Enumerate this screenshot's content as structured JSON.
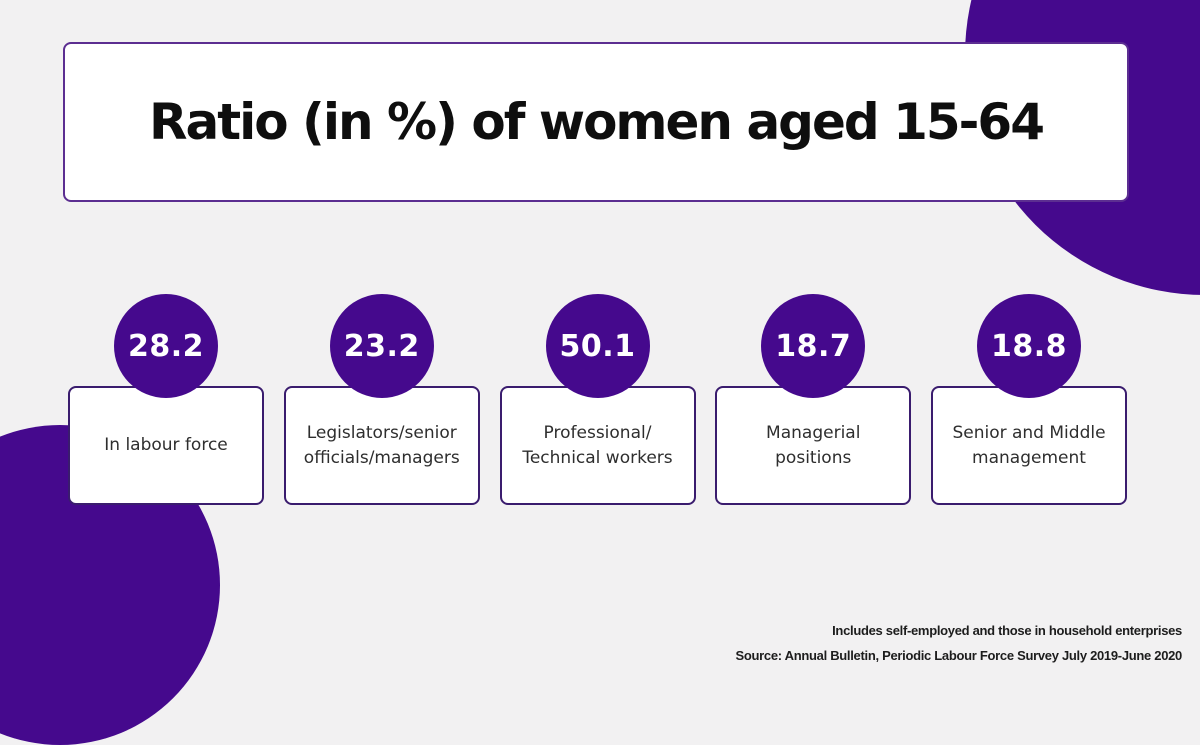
{
  "title": "Ratio (in %) of women aged 15-64",
  "stats": [
    {
      "value": "28.2",
      "lines": [
        "In labour force"
      ]
    },
    {
      "value": "23.2",
      "lines": [
        "Legislators/senior",
        "officials/managers"
      ]
    },
    {
      "value": "50.1",
      "lines": [
        "Professional/",
        "Technical workers"
      ]
    },
    {
      "value": "18.7",
      "lines": [
        "Managerial",
        "positions"
      ]
    },
    {
      "value": "18.8",
      "lines": [
        "Senior and Middle",
        "management"
      ]
    }
  ],
  "footer": {
    "footnote": "Includes self-employed and those in household enterprises",
    "source": "Source: Annual Bulletin, Periodic Labour Force Survey July 2019-June 2020"
  },
  "colors": {
    "purple": "#45098D",
    "card_border": "#3A1C6E",
    "title_border": "#5C2E91",
    "background": "#F2F1F2",
    "text_dark": "#2E2E2E",
    "value_text": "#FFFFFF"
  },
  "chart_data": {
    "type": "table",
    "title": "Ratio (in %) of women aged 15-64",
    "categories": [
      "In labour force",
      "Legislators/senior officials/managers",
      "Professional/ Technical workers",
      "Managerial positions",
      "Senior and Middle management"
    ],
    "values": [
      28.2,
      23.2,
      50.1,
      18.7,
      18.8
    ],
    "unit": "%",
    "legend_position": "none",
    "grid": false,
    "notes": [
      "Includes self-employed and those in household enterprises",
      "Source: Annual Bulletin, Periodic Labour Force Survey July 2019-June 2020"
    ]
  }
}
